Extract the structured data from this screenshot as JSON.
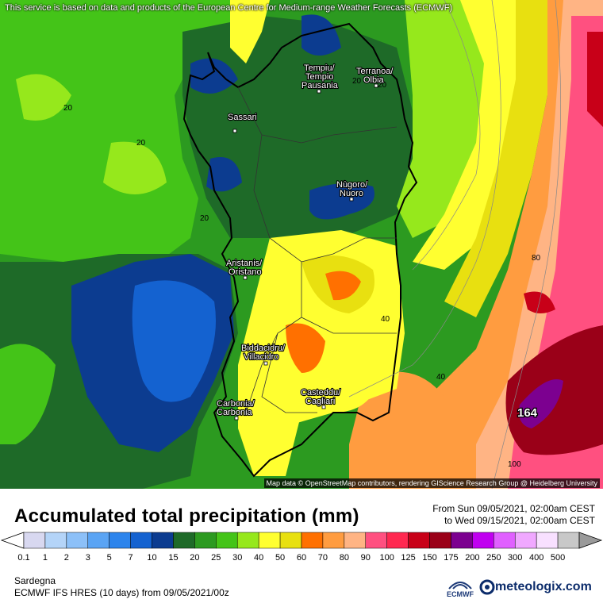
{
  "header": {
    "disclaimer": "This service is based on data and products of the European Centre for Medium-range Weather Forecasts (ECMWF)"
  },
  "map": {
    "attribution": "Map data © OpenStreetMap contributors, rendering GIScience Research Group @ Heidelberg University",
    "cities": [
      {
        "line1": "Tempiu/",
        "line2": "Tempio",
        "line3": "Pausania"
      },
      {
        "line1": "Terranoa/",
        "line2": "Olbia"
      },
      {
        "line1": "Sassari"
      },
      {
        "line1": "Nùgoro/",
        "line2": "Nuoro"
      },
      {
        "line1": "Aristanis/",
        "line2": "Oristano"
      },
      {
        "line1": "Biddacidru/",
        "line2": "Villacidro"
      },
      {
        "line1": "Casteddu/",
        "line2": "Cagliari"
      },
      {
        "line1": "Carbonia/",
        "line2": "Carbonia"
      }
    ],
    "contour_labels": [
      "20",
      "20",
      "20",
      "20",
      "40",
      "40",
      "80",
      "100",
      "20"
    ],
    "max_value_label": "164"
  },
  "legend": {
    "title": "Accumulated total precipitation (mm)",
    "from": "From Sun 09/05/2021, 02:00am CEST",
    "to": "to Wed 09/15/2021, 02:00am CEST",
    "ticks": [
      "0.1",
      "1",
      "2",
      "3",
      "5",
      "7",
      "10",
      "15",
      "20",
      "25",
      "30",
      "40",
      "50",
      "60",
      "70",
      "80",
      "90",
      "100",
      "125",
      "150",
      "175",
      "200",
      "250",
      "300",
      "400",
      "500"
    ],
    "colors": [
      "#d8d8f0",
      "#b4d4f8",
      "#8cc0f8",
      "#5aa4f4",
      "#2c84ec",
      "#1462d0",
      "#0c3c90",
      "#1e6a28",
      "#2c9a20",
      "#44c418",
      "#96e81c",
      "#ffff30",
      "#e8e010",
      "#ff7000",
      "#ff9c40",
      "#ffb484",
      "#ff5080",
      "#ff2850",
      "#c80018",
      "#9a0018",
      "#7c0090",
      "#c000f0",
      "#e060ff",
      "#f0a8ff",
      "#f8e0ff",
      "#c8c8c8"
    ]
  },
  "footer": {
    "region": "Sardegna",
    "model": "ECMWF IFS HRES (10 days) from 09/05/2021/00z",
    "ecmwf_logo": "ECMWF",
    "brand": "meteologix.com"
  }
}
